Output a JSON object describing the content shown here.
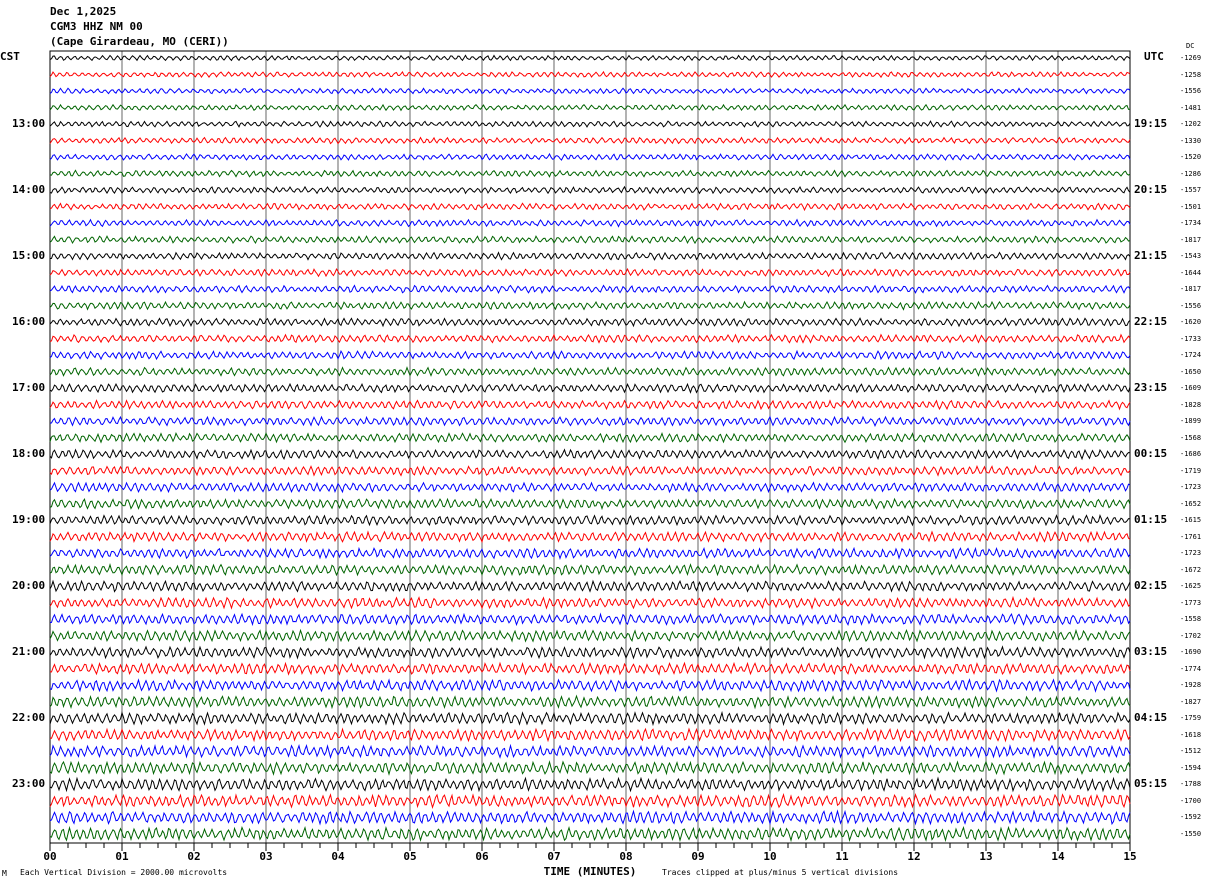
{
  "header": {
    "date": "Dec 1,2025",
    "station": "CGM3 HHZ NM 00",
    "location": "(Cape Girardeau, MO (CERI))"
  },
  "chart_data": {
    "type": "line",
    "title": "CGM3 HHZ NM 00 helicorder",
    "xlabel": "TIME (MINUTES)",
    "xlim": [
      0,
      15
    ],
    "x_ticks": [
      "00",
      "01",
      "02",
      "03",
      "04",
      "05",
      "06",
      "07",
      "08",
      "09",
      "10",
      "11",
      "12",
      "13",
      "14",
      "15"
    ],
    "left_timezone": "CST",
    "right_timezone": "UTC",
    "dc_header": "DC",
    "left_hour_labels": [
      "13:00",
      "14:00",
      "15:00",
      "16:00",
      "17:00",
      "18:00",
      "19:00",
      "20:00",
      "21:00",
      "22:00",
      "23:00"
    ],
    "right_hour_labels": [
      "19:15",
      "20:15",
      "21:15",
      "22:15",
      "23:15",
      "00:15",
      "01:15",
      "02:15",
      "03:15",
      "04:15",
      "05:15"
    ],
    "trace_colors": [
      "#000000",
      "#ff0000",
      "#0000ff",
      "#006400"
    ],
    "dc_offsets": [
      "-1269",
      "-1258",
      "-1556",
      "-1481",
      "-1202",
      "-1330",
      "-1520",
      "-1286",
      "-1557",
      "-1501",
      "-1734",
      "-1817",
      "-1543",
      "-1644",
      "-1817",
      "-1556",
      "-1620",
      "-1733",
      "-1724",
      "-1650",
      "-1609",
      "-1828",
      "-1899",
      "-1568",
      "-1686",
      "-1719",
      "-1723",
      "-1652",
      "-1615",
      "-1761",
      "-1723",
      "-1672",
      "-1625",
      "-1773",
      "-1558",
      "-1702",
      "-1690",
      "-1774",
      "-1928",
      "-1827",
      "-1759",
      "-1618",
      "-1512",
      "-1594",
      "-1788",
      "-1700",
      "-1592",
      "-1550"
    ]
  },
  "footer": {
    "scale_note": "Each Vertical Division = 2000.00 microvolts",
    "clip_note": "Traces clipped at plus/minus 5 vertical divisions",
    "logo": "M"
  }
}
